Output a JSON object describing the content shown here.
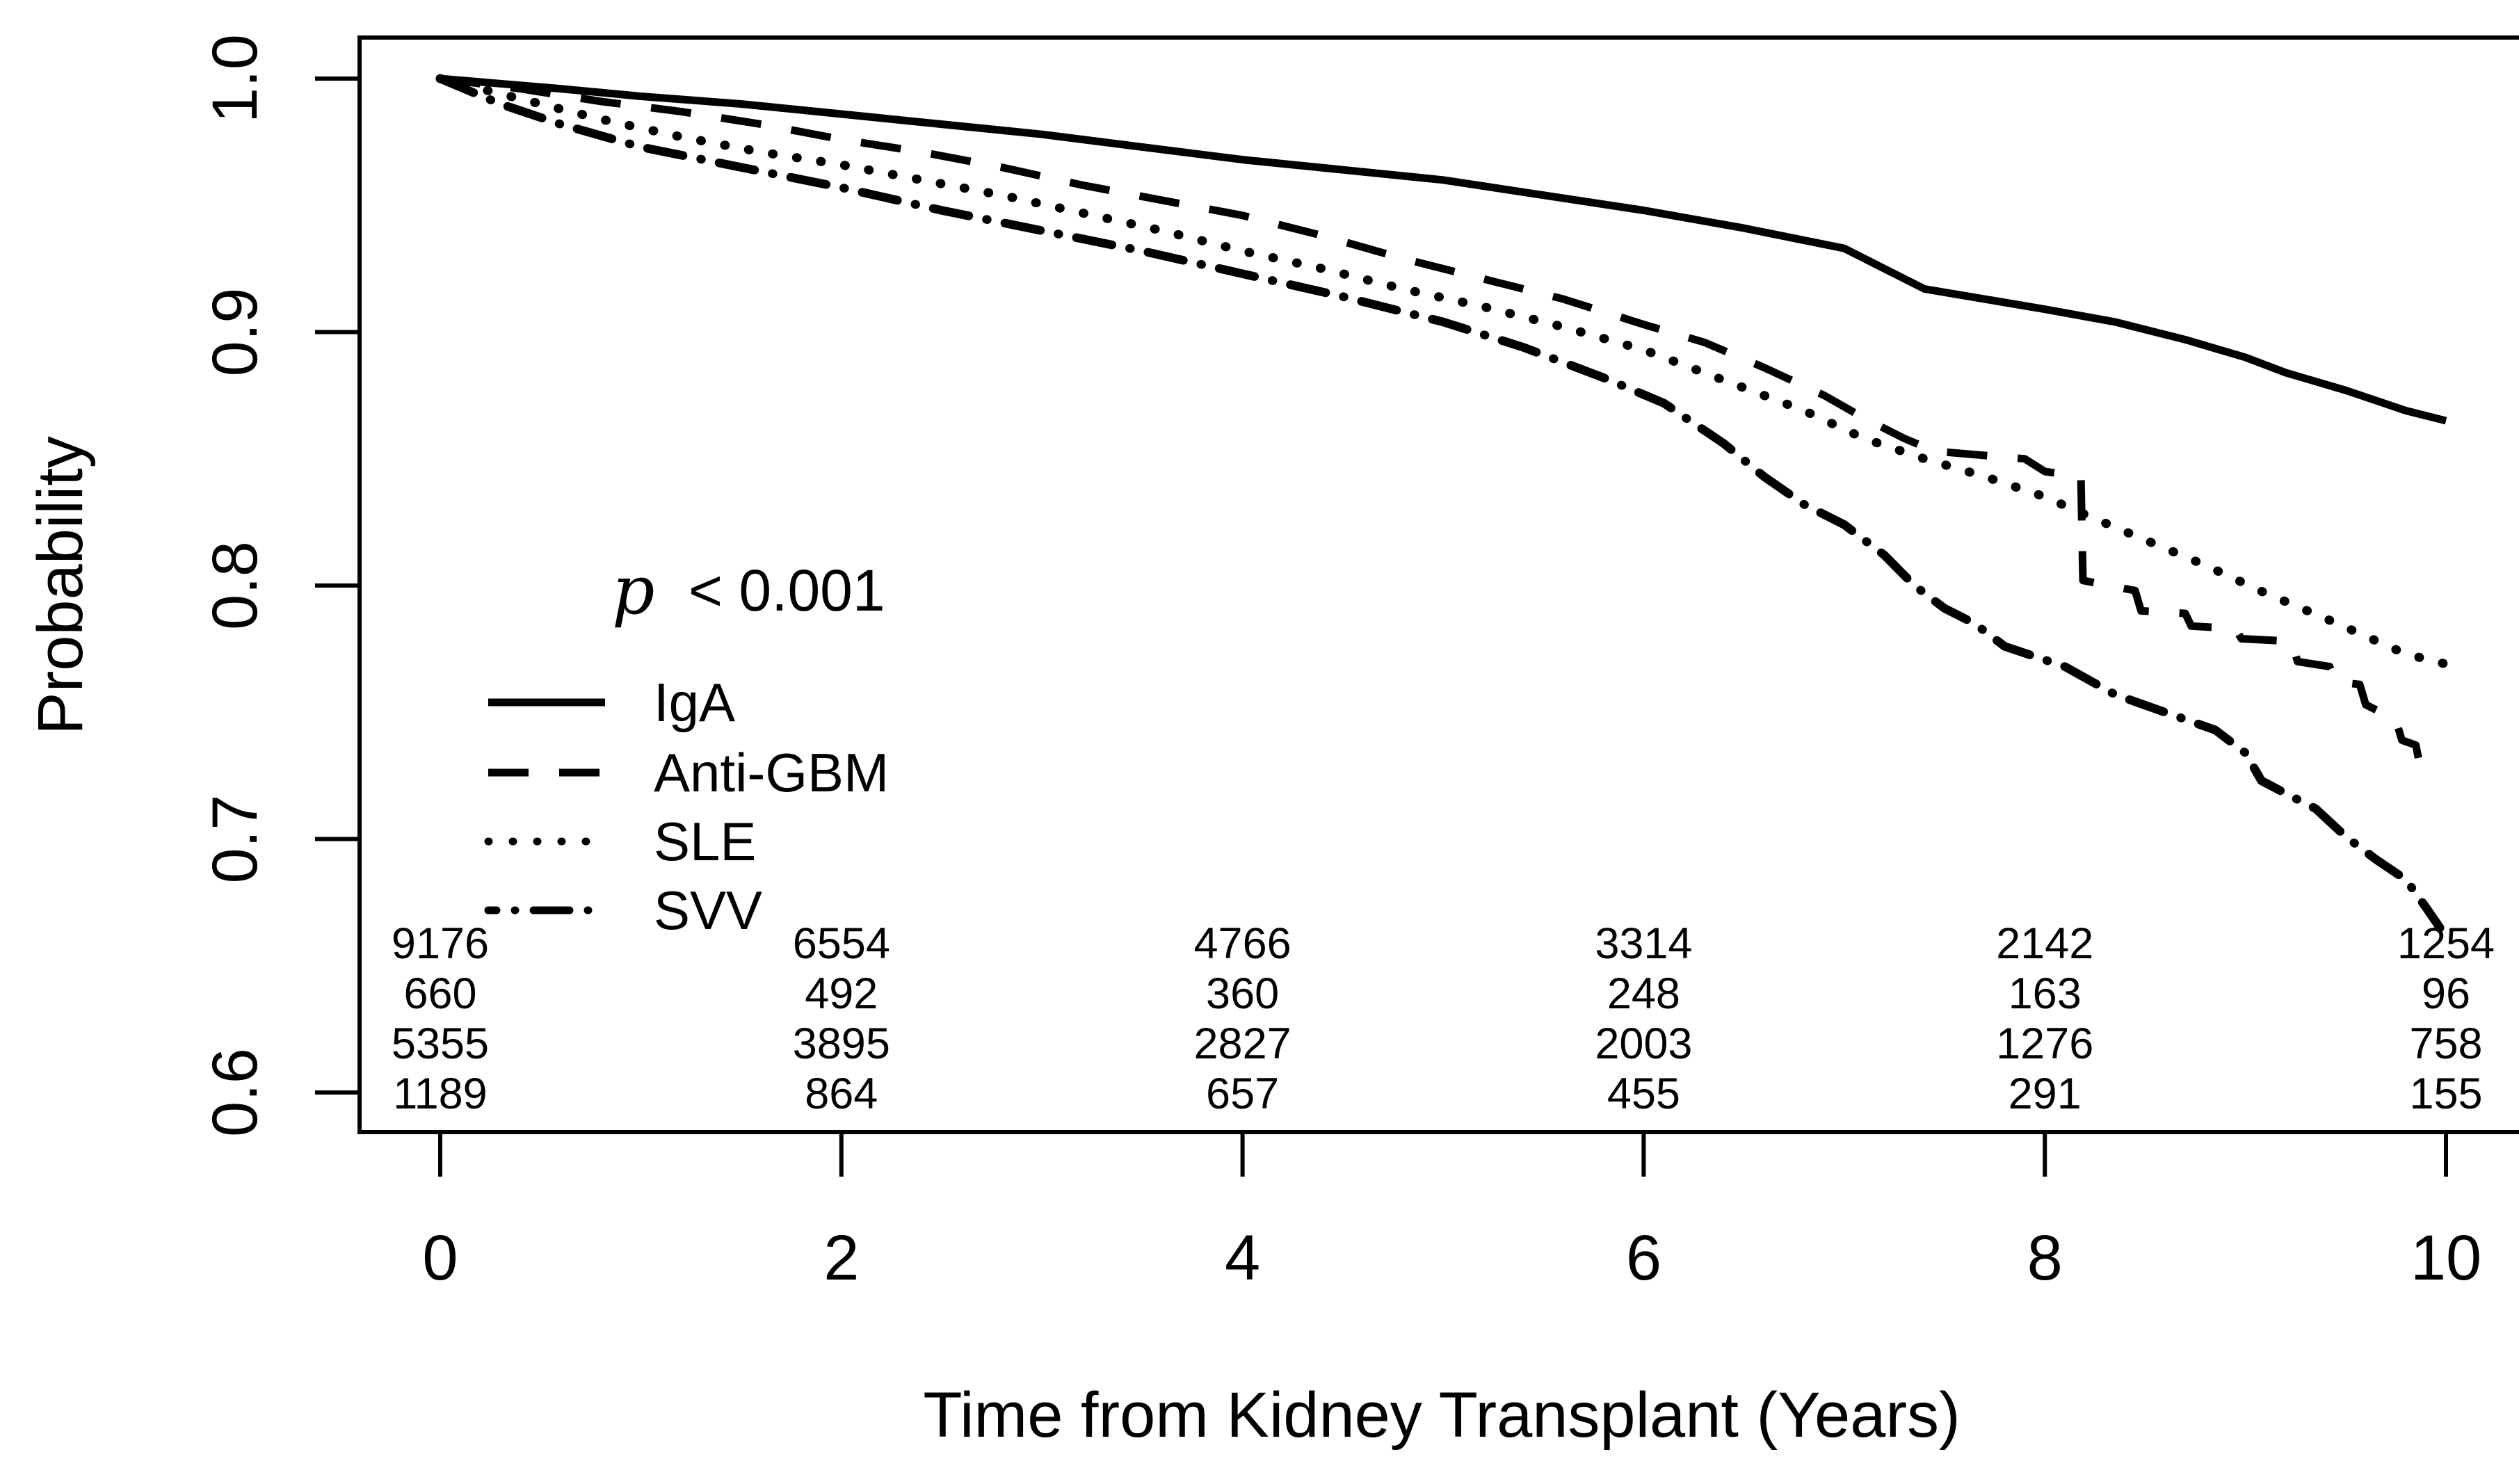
{
  "chart_data": {
    "type": "line",
    "subtype": "kaplan-meier-survival",
    "title": "",
    "xlabel": "Time from Kidney Transplant (Years)",
    "ylabel": "Probability",
    "p_value_italic": "p",
    "p_value_rest": "< 0.001",
    "grid": false,
    "legend_position": "left-middle-inside",
    "xlim": [
      0,
      10
    ],
    "ylim": [
      0.6,
      1.0
    ],
    "x_ticks": [
      "0",
      "2",
      "4",
      "6",
      "8",
      "10"
    ],
    "x_tick_values": [
      0,
      2,
      4,
      6,
      8,
      10
    ],
    "y_ticks": [
      "1.0",
      "0.9",
      "0.8",
      "0.7",
      "0.6"
    ],
    "y_tick_values": [
      1.0,
      0.9,
      0.8,
      0.7,
      0.6
    ],
    "line_color": "#000000",
    "series": [
      {
        "name": "IgA",
        "style": "solid",
        "points": [
          [
            0,
            1.0
          ],
          [
            0.3,
            0.998
          ],
          [
            0.6,
            0.996
          ],
          [
            1,
            0.993
          ],
          [
            1.5,
            0.99
          ],
          [
            2,
            0.986
          ],
          [
            2.5,
            0.982
          ],
          [
            3,
            0.978
          ],
          [
            3.5,
            0.973
          ],
          [
            4,
            0.968
          ],
          [
            4.5,
            0.964
          ],
          [
            5,
            0.96
          ],
          [
            5.5,
            0.954
          ],
          [
            6,
            0.948
          ],
          [
            6.5,
            0.941
          ],
          [
            7,
            0.933
          ],
          [
            7.2,
            0.925
          ],
          [
            7.4,
            0.917
          ],
          [
            7.7,
            0.913
          ],
          [
            8,
            0.909
          ],
          [
            8.35,
            0.904
          ],
          [
            8.7,
            0.897
          ],
          [
            9,
            0.89
          ],
          [
            9.2,
            0.884
          ],
          [
            9.5,
            0.877
          ],
          [
            9.8,
            0.869
          ],
          [
            10,
            0.865
          ]
        ]
      },
      {
        "name": "Anti-GBM",
        "style": "dashed",
        "points": [
          [
            0,
            1.0
          ],
          [
            0.4,
            0.996
          ],
          [
            0.8,
            0.991
          ],
          [
            1.2,
            0.987
          ],
          [
            1.6,
            0.982
          ],
          [
            2,
            0.976
          ],
          [
            2.4,
            0.971
          ],
          [
            2.8,
            0.965
          ],
          [
            3.2,
            0.958
          ],
          [
            3.6,
            0.952
          ],
          [
            4,
            0.946
          ],
          [
            4.4,
            0.938
          ],
          [
            4.8,
            0.929
          ],
          [
            5.2,
            0.921
          ],
          [
            5.6,
            0.913
          ],
          [
            6,
            0.903
          ],
          [
            6.3,
            0.896
          ],
          [
            6.6,
            0.886
          ],
          [
            6.9,
            0.875
          ],
          [
            7.1,
            0.866
          ],
          [
            7.3,
            0.858
          ],
          [
            7.45,
            0.853
          ],
          [
            7.9,
            0.85
          ],
          [
            8,
            0.845
          ],
          [
            8.18,
            0.843
          ],
          [
            8.19,
            0.802
          ],
          [
            8.45,
            0.798
          ],
          [
            8.48,
            0.79
          ],
          [
            8.7,
            0.789
          ],
          [
            8.73,
            0.784
          ],
          [
            8.95,
            0.783
          ],
          [
            8.98,
            0.779
          ],
          [
            9.23,
            0.778
          ],
          [
            9.26,
            0.77
          ],
          [
            9.42,
            0.768
          ],
          [
            9.45,
            0.762
          ],
          [
            9.57,
            0.761
          ],
          [
            9.6,
            0.753
          ],
          [
            9.75,
            0.747
          ],
          [
            9.78,
            0.739
          ],
          [
            9.85,
            0.737
          ],
          [
            9.87,
            0.729
          ],
          [
            9.9,
            0.727
          ]
        ]
      },
      {
        "name": "SLE",
        "style": "dotted",
        "points": [
          [
            0,
            1.0
          ],
          [
            0.4,
            0.992
          ],
          [
            0.8,
            0.984
          ],
          [
            1.2,
            0.977
          ],
          [
            1.6,
            0.971
          ],
          [
            2,
            0.966
          ],
          [
            2.4,
            0.96
          ],
          [
            2.8,
            0.954
          ],
          [
            3.2,
            0.947
          ],
          [
            3.6,
            0.94
          ],
          [
            4,
            0.932
          ],
          [
            4.4,
            0.925
          ],
          [
            4.8,
            0.917
          ],
          [
            5.2,
            0.91
          ],
          [
            5.6,
            0.902
          ],
          [
            6,
            0.893
          ],
          [
            6.4,
            0.881
          ],
          [
            6.8,
            0.869
          ],
          [
            7.1,
            0.858
          ],
          [
            7.4,
            0.85
          ],
          [
            7.7,
            0.843
          ],
          [
            8,
            0.835
          ],
          [
            8.2,
            0.828
          ],
          [
            8.5,
            0.818
          ],
          [
            8.8,
            0.808
          ],
          [
            9.1,
            0.797
          ],
          [
            9.4,
            0.787
          ],
          [
            9.6,
            0.78
          ],
          [
            9.8,
            0.773
          ],
          [
            10,
            0.769
          ]
        ]
      },
      {
        "name": "SVV",
        "style": "dashdot",
        "points": [
          [
            0,
            1.0
          ],
          [
            0.3,
            0.99
          ],
          [
            0.6,
            0.982
          ],
          [
            1,
            0.973
          ],
          [
            1.5,
            0.965
          ],
          [
            2,
            0.957
          ],
          [
            2.5,
            0.948
          ],
          [
            3,
            0.94
          ],
          [
            3.5,
            0.932
          ],
          [
            4,
            0.923
          ],
          [
            4.5,
            0.914
          ],
          [
            5,
            0.904
          ],
          [
            5.4,
            0.894
          ],
          [
            5.8,
            0.882
          ],
          [
            6.1,
            0.872
          ],
          [
            6.4,
            0.856
          ],
          [
            6.6,
            0.843
          ],
          [
            6.8,
            0.832
          ],
          [
            7,
            0.824
          ],
          [
            7.2,
            0.812
          ],
          [
            7.35,
            0.8
          ],
          [
            7.5,
            0.791
          ],
          [
            7.65,
            0.785
          ],
          [
            7.8,
            0.776
          ],
          [
            8.1,
            0.768
          ],
          [
            8.35,
            0.757
          ],
          [
            8.6,
            0.75
          ],
          [
            8.85,
            0.743
          ],
          [
            9,
            0.734
          ],
          [
            9.08,
            0.723
          ],
          [
            9.2,
            0.718
          ],
          [
            9.35,
            0.712
          ],
          [
            9.5,
            0.701
          ],
          [
            9.65,
            0.692
          ],
          [
            9.8,
            0.684
          ],
          [
            9.9,
            0.673
          ],
          [
            9.97,
            0.665
          ]
        ]
      }
    ],
    "at_risk_columns": [
      0,
      2,
      4,
      6,
      8,
      10
    ],
    "at_risk": [
      {
        "group": "IgA",
        "counts": [
          9176,
          6554,
          4766,
          3314,
          2142,
          1254
        ]
      },
      {
        "group": "Anti-GBM",
        "counts": [
          660,
          492,
          360,
          248,
          163,
          96
        ]
      },
      {
        "group": "SLE",
        "counts": [
          5355,
          3895,
          2827,
          2003,
          1276,
          758
        ]
      },
      {
        "group": "SVV",
        "counts": [
          1189,
          864,
          657,
          455,
          291,
          155
        ]
      }
    ]
  }
}
